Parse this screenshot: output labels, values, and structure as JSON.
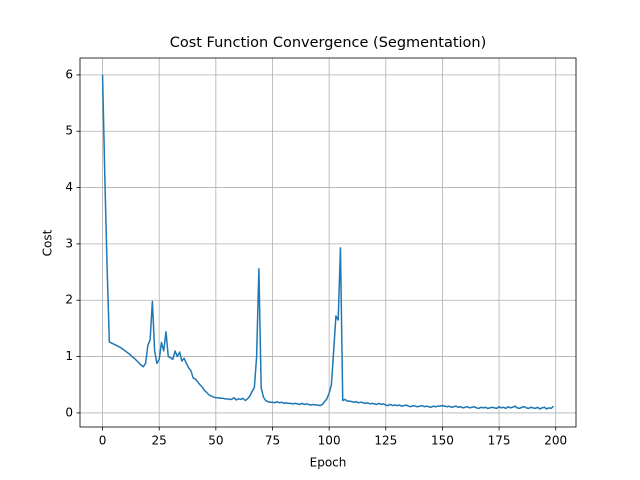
{
  "chart_data": {
    "type": "line",
    "title": "Cost Function Convergence (Segmentation)",
    "x_label": "Epoch",
    "y_label": "Cost",
    "x": [
      0,
      1,
      2,
      3,
      4,
      5,
      6,
      7,
      8,
      9,
      10,
      11,
      12,
      13,
      14,
      15,
      16,
      17,
      18,
      19,
      20,
      21,
      22,
      23,
      24,
      25,
      26,
      27,
      28,
      29,
      30,
      31,
      32,
      33,
      34,
      35,
      36,
      37,
      38,
      39,
      40,
      41,
      42,
      43,
      44,
      45,
      46,
      47,
      48,
      49,
      50,
      51,
      52,
      53,
      54,
      55,
      56,
      57,
      58,
      59,
      60,
      61,
      62,
      63,
      64,
      65,
      66,
      67,
      68,
      69,
      70,
      71,
      72,
      73,
      74,
      75,
      76,
      77,
      78,
      79,
      80,
      81,
      82,
      83,
      84,
      85,
      86,
      87,
      88,
      89,
      90,
      91,
      92,
      93,
      94,
      95,
      96,
      97,
      98,
      99,
      100,
      101,
      102,
      103,
      104,
      105,
      106,
      107,
      108,
      109,
      110,
      111,
      112,
      113,
      114,
      115,
      116,
      117,
      118,
      119,
      120,
      121,
      122,
      123,
      124,
      125,
      126,
      127,
      128,
      129,
      130,
      131,
      132,
      133,
      134,
      135,
      136,
      137,
      138,
      139,
      140,
      141,
      142,
      143,
      144,
      145,
      146,
      147,
      148,
      149,
      150,
      151,
      152,
      153,
      154,
      155,
      156,
      157,
      158,
      159,
      160,
      161,
      162,
      163,
      164,
      165,
      166,
      167,
      168,
      169,
      170,
      171,
      172,
      173,
      174,
      175,
      176,
      177,
      178,
      179,
      180,
      181,
      182,
      183,
      184,
      185,
      186,
      187,
      188,
      189,
      190,
      191,
      192,
      193,
      194,
      195,
      196,
      197,
      198,
      199
    ],
    "series": [
      {
        "name": "Cost",
        "color": "#1f77b4",
        "values": [
          6.0,
          4.2,
          2.6,
          1.26,
          1.24,
          1.22,
          1.2,
          1.18,
          1.16,
          1.13,
          1.1,
          1.07,
          1.04,
          1.0,
          0.97,
          0.93,
          0.89,
          0.85,
          0.82,
          0.88,
          1.2,
          1.3,
          1.98,
          1.1,
          0.88,
          0.95,
          1.25,
          1.1,
          1.44,
          1.0,
          0.98,
          0.95,
          1.1,
          1.0,
          1.08,
          0.92,
          0.97,
          0.88,
          0.8,
          0.75,
          0.62,
          0.6,
          0.55,
          0.5,
          0.46,
          0.4,
          0.36,
          0.32,
          0.3,
          0.28,
          0.27,
          0.27,
          0.26,
          0.26,
          0.25,
          0.25,
          0.24,
          0.24,
          0.27,
          0.23,
          0.25,
          0.24,
          0.26,
          0.22,
          0.25,
          0.3,
          0.38,
          0.45,
          1.0,
          2.56,
          0.45,
          0.28,
          0.22,
          0.2,
          0.19,
          0.19,
          0.18,
          0.2,
          0.18,
          0.19,
          0.17,
          0.18,
          0.17,
          0.17,
          0.16,
          0.17,
          0.16,
          0.15,
          0.17,
          0.15,
          0.16,
          0.15,
          0.14,
          0.15,
          0.14,
          0.14,
          0.13,
          0.15,
          0.2,
          0.25,
          0.35,
          0.5,
          1.1,
          1.72,
          1.65,
          2.93,
          0.22,
          0.24,
          0.21,
          0.21,
          0.2,
          0.19,
          0.2,
          0.18,
          0.19,
          0.18,
          0.17,
          0.18,
          0.16,
          0.17,
          0.16,
          0.15,
          0.17,
          0.15,
          0.16,
          0.14,
          0.13,
          0.15,
          0.13,
          0.14,
          0.13,
          0.14,
          0.12,
          0.13,
          0.14,
          0.12,
          0.11,
          0.13,
          0.12,
          0.11,
          0.12,
          0.13,
          0.11,
          0.12,
          0.11,
          0.1,
          0.12,
          0.11,
          0.12,
          0.12,
          0.13,
          0.12,
          0.11,
          0.12,
          0.1,
          0.11,
          0.12,
          0.1,
          0.11,
          0.09,
          0.1,
          0.11,
          0.09,
          0.1,
          0.11,
          0.09,
          0.08,
          0.1,
          0.09,
          0.1,
          0.08,
          0.09,
          0.1,
          0.09,
          0.08,
          0.11,
          0.09,
          0.1,
          0.08,
          0.11,
          0.09,
          0.1,
          0.12,
          0.09,
          0.08,
          0.1,
          0.11,
          0.09,
          0.08,
          0.1,
          0.09,
          0.08,
          0.1,
          0.07,
          0.09,
          0.1,
          0.07,
          0.09,
          0.08,
          0.12
        ]
      }
    ],
    "xlim": [
      -9.95,
      208.95
    ],
    "ylim": [
      -0.25,
      6.3
    ],
    "xticks": [
      0,
      25,
      50,
      75,
      100,
      125,
      150,
      175,
      200
    ],
    "yticks": [
      0,
      1,
      2,
      3,
      4,
      5,
      6
    ],
    "grid": true
  }
}
